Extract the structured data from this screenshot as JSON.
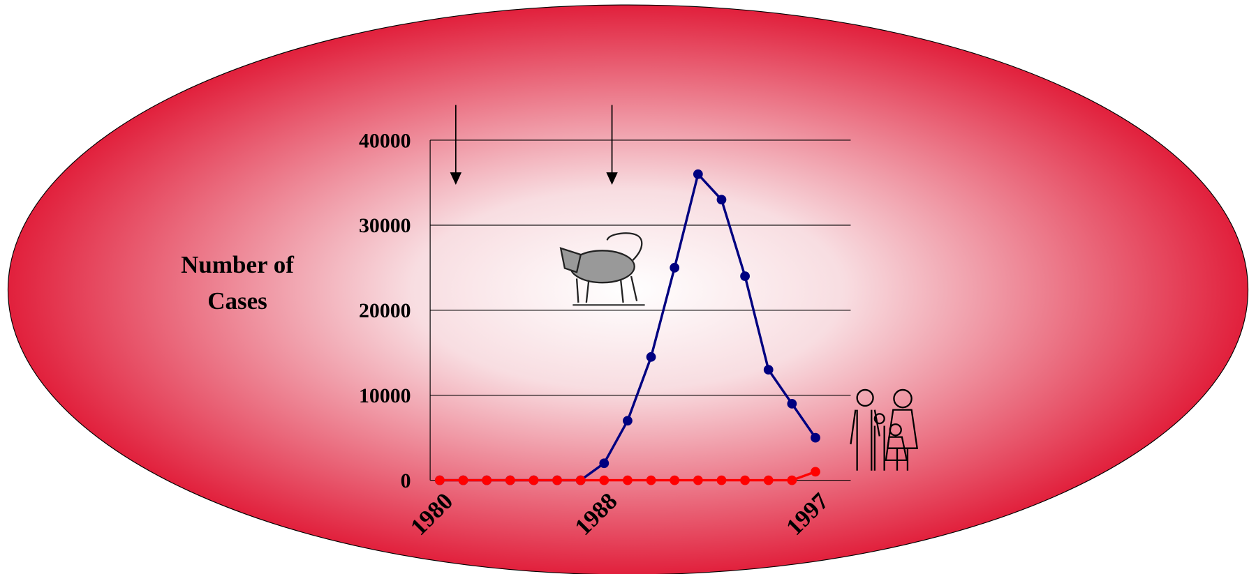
{
  "chart_data": {
    "type": "line",
    "y_label": "Number of Cases",
    "categories": [
      "1980",
      null,
      null,
      null,
      null,
      null,
      null,
      "1988",
      null,
      null,
      null,
      null,
      null,
      null,
      null,
      null,
      "1997"
    ],
    "series": [
      {
        "color": "#000080",
        "values": [
          0,
          0,
          0,
          0,
          0,
          0,
          0,
          2000,
          7000,
          14500,
          25000,
          36000,
          33000,
          24000,
          13000,
          9000,
          5000
        ]
      },
      {
        "color": "#ff0000",
        "values": [
          0,
          0,
          0,
          0,
          0,
          0,
          0,
          0,
          0,
          0,
          0,
          0,
          0,
          0,
          0,
          0,
          1000
        ]
      }
    ],
    "ylim": [
      0,
      40000
    ],
    "yticks": [
      0,
      10000,
      20000,
      30000,
      40000
    ],
    "grid": true
  }
}
